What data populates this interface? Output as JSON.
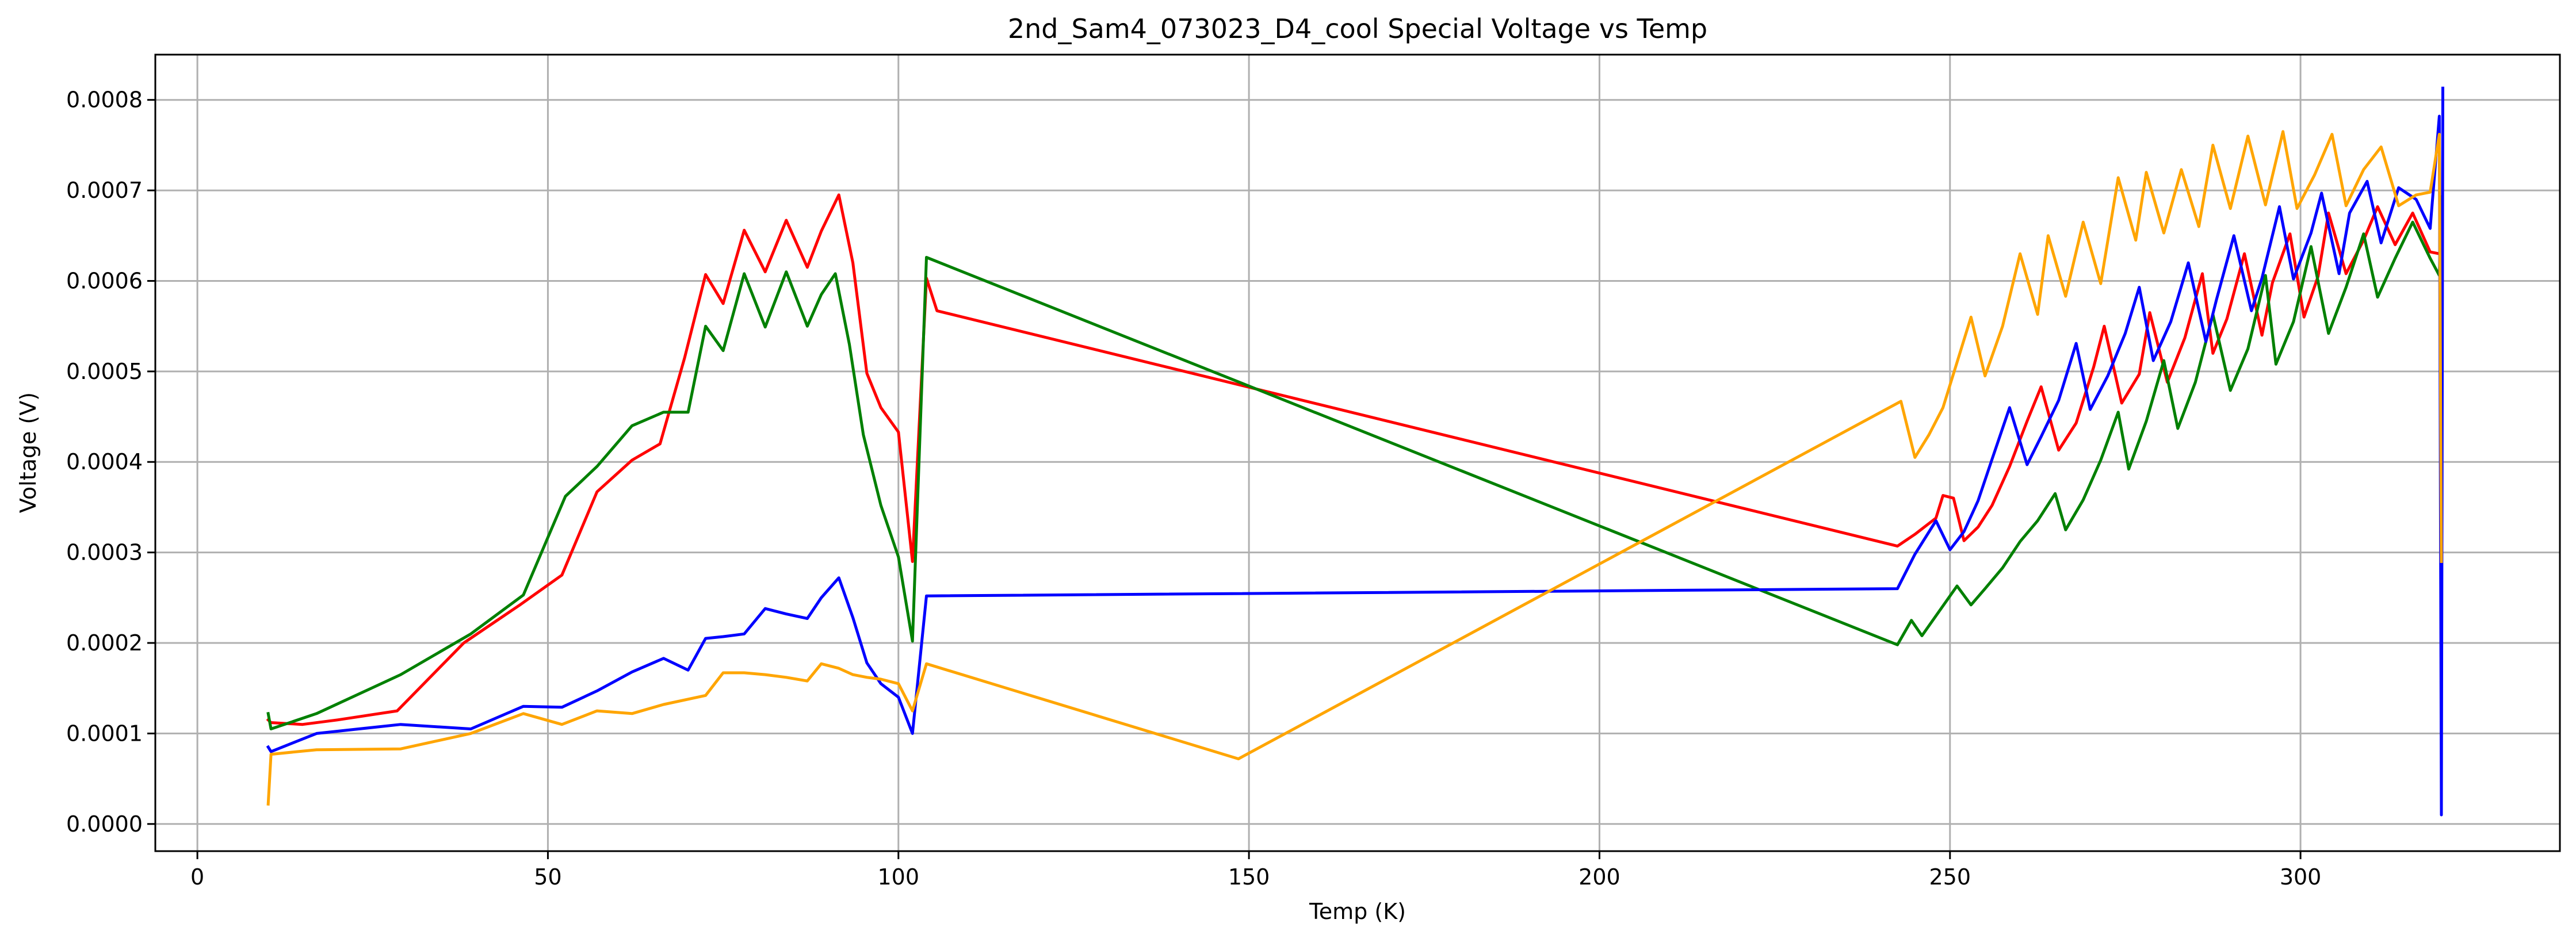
{
  "chart_data": {
    "type": "line",
    "title": "2nd_Sam4_073023_D4_cool Special Voltage vs Temp",
    "xlabel": "Temp (K)",
    "ylabel": "Voltage (V)",
    "xlim": [
      -6,
      337
    ],
    "ylim": [
      -3e-05,
      0.00085
    ],
    "xticks": [
      0,
      50,
      100,
      150,
      200,
      250,
      300
    ],
    "xtick_labels": [
      "0",
      "50",
      "100",
      "150",
      "200",
      "250",
      "300"
    ],
    "yticks": [
      0,
      0.0001,
      0.0002,
      0.0003,
      0.0004,
      0.0005,
      0.0006,
      0.0007,
      0.0008
    ],
    "ytick_labels": [
      "0.0000",
      "0.0001",
      "0.0002",
      "0.0003",
      "0.0004",
      "0.0005",
      "0.0006",
      "0.0007",
      "0.0008"
    ],
    "grid": true,
    "series": [
      {
        "color": "#ff0000",
        "x": [
          10.1,
          10.5,
          15,
          20,
          28.5,
          38,
          46,
          52,
          57,
          62,
          66,
          69.5,
          72.5,
          75,
          78,
          81,
          84,
          87,
          89,
          91.5,
          93.5,
          95.5,
          97.5,
          100,
          102,
          104,
          105.5,
          242.5,
          245,
          248,
          249,
          250.5,
          252,
          254,
          256,
          258.5,
          261,
          263,
          265.5,
          268,
          270.5,
          272,
          274.5,
          277,
          278.5,
          281,
          283.5,
          286,
          287.5,
          289.5,
          292,
          294.5,
          296,
          298.5,
          300.5,
          302.5,
          304,
          306.5,
          309,
          311,
          313.5,
          316,
          318.5,
          319.8
        ],
        "y": [
          0.000115,
          0.000112,
          0.00011,
          0.000115,
          0.000125,
          0.0002,
          0.000242,
          0.000275,
          0.000367,
          0.000402,
          0.00042,
          0.000515,
          0.000607,
          0.000575,
          0.000656,
          0.00061,
          0.000667,
          0.000615,
          0.000655,
          0.000695,
          0.00062,
          0.000498,
          0.00046,
          0.000433,
          0.00029,
          0.000603,
          0.000567,
          0.000307,
          0.00032,
          0.000338,
          0.000363,
          0.00036,
          0.000313,
          0.000328,
          0.000352,
          0.000395,
          0.000445,
          0.000483,
          0.000413,
          0.000443,
          0.000505,
          0.00055,
          0.000465,
          0.000497,
          0.000565,
          0.000488,
          0.000537,
          0.000608,
          0.00052,
          0.000558,
          0.00063,
          0.00054,
          0.000598,
          0.000652,
          0.00056,
          0.000605,
          0.000675,
          0.000608,
          0.000645,
          0.000682,
          0.00064,
          0.000675,
          0.000632,
          0.00063
        ]
      },
      {
        "color": "#008000",
        "x": [
          10.1,
          10.5,
          17,
          29,
          39,
          46.5,
          52.5,
          57,
          62,
          66.5,
          70,
          72.5,
          75,
          78,
          81,
          84,
          87,
          89,
          91,
          93,
          95,
          97.5,
          100,
          102,
          104,
          242.5,
          244.5,
          246,
          248,
          251,
          253,
          255,
          257.5,
          260,
          262.5,
          265,
          266.5,
          269,
          271.5,
          274,
          275.5,
          278,
          280.5,
          282.5,
          285,
          287.5,
          290,
          292.5,
          295,
          296.5,
          299,
          301.5,
          304,
          306.5,
          309,
          311,
          313.5,
          316,
          318.5,
          319.8,
          320.2
        ],
        "y": [
          0.000122,
          0.000105,
          0.000122,
          0.000165,
          0.00021,
          0.000253,
          0.000362,
          0.000395,
          0.00044,
          0.000455,
          0.000455,
          0.00055,
          0.000523,
          0.000608,
          0.000549,
          0.00061,
          0.00055,
          0.000585,
          0.000608,
          0.00053,
          0.00043,
          0.000352,
          0.000295,
          0.000202,
          0.000626,
          0.000198,
          0.000225,
          0.000208,
          0.00023,
          0.000263,
          0.000242,
          0.00026,
          0.000283,
          0.000312,
          0.000335,
          0.000365,
          0.000325,
          0.000358,
          0.000402,
          0.000455,
          0.000392,
          0.000445,
          0.000512,
          0.000437,
          0.000488,
          0.000563,
          0.000479,
          0.000525,
          0.000606,
          0.000508,
          0.000555,
          0.000638,
          0.000542,
          0.000593,
          0.000652,
          0.000582,
          0.000625,
          0.000665,
          0.000625,
          0.000606,
          0.000693
        ]
      },
      {
        "color": "#0000ff",
        "x": [
          10.1,
          10.5,
          17,
          29,
          39,
          46.5,
          52,
          57,
          62,
          66.5,
          70,
          72.5,
          75,
          78,
          81,
          84,
          87,
          89,
          91.5,
          93.5,
          95.5,
          97.5,
          100,
          102,
          104,
          242.5,
          245,
          248,
          250,
          252,
          254,
          256,
          258.5,
          261,
          263,
          265.5,
          268,
          270,
          272.5,
          275,
          277,
          279,
          281.5,
          284,
          286.5,
          288,
          290.5,
          293,
          294.5,
          297,
          299,
          301.5,
          303,
          305.5,
          307,
          309.5,
          311.5,
          314,
          316.5,
          318.5,
          319.8,
          320.1,
          320.3
        ],
        "y": [
          8.5e-05,
          8e-05,
          0.0001,
          0.00011,
          0.000105,
          0.00013,
          0.000129,
          0.000147,
          0.000168,
          0.000183,
          0.00017,
          0.000205,
          0.000207,
          0.00021,
          0.000238,
          0.000232,
          0.000227,
          0.00025,
          0.000272,
          0.000228,
          0.000178,
          0.000155,
          0.00014,
          0.0001,
          0.000252,
          0.00026,
          0.000298,
          0.000335,
          0.000303,
          0.000323,
          0.000357,
          0.000403,
          0.00046,
          0.000397,
          0.000428,
          0.000468,
          0.000531,
          0.000458,
          0.000495,
          0.000542,
          0.000593,
          0.000512,
          0.000555,
          0.00062,
          0.000533,
          0.000579,
          0.00065,
          0.000567,
          0.000603,
          0.000682,
          0.000602,
          0.000653,
          0.000697,
          0.000608,
          0.000675,
          0.00071,
          0.000642,
          0.000703,
          0.00069,
          0.000658,
          0.000782,
          1e-05,
          0.000813
        ]
      },
      {
        "color": "#ffa500",
        "x": [
          10.1,
          10.5,
          17,
          29,
          39,
          46.5,
          52,
          57,
          62,
          66.5,
          72.5,
          75,
          78,
          81,
          84,
          87,
          89,
          91.5,
          93.5,
          95.5,
          97.5,
          100,
          102,
          104,
          148.5,
          243,
          245,
          247,
          249,
          251,
          253,
          255,
          257.5,
          260,
          262.5,
          264,
          266.5,
          269,
          271.5,
          274,
          276.5,
          278,
          280.5,
          283,
          285.5,
          287.5,
          290,
          292.5,
          295,
          297.5,
          299.5,
          302,
          304.5,
          306.5,
          309,
          311.5,
          314,
          316.5,
          318.5,
          319.8,
          320.1
        ],
        "y": [
          2.2e-05,
          7.7e-05,
          8.2e-05,
          8.3e-05,
          0.0001,
          0.000122,
          0.00011,
          0.000125,
          0.000122,
          0.000132,
          0.000142,
          0.000167,
          0.000167,
          0.000165,
          0.000162,
          0.000158,
          0.000177,
          0.000172,
          0.000165,
          0.000162,
          0.00016,
          0.000155,
          0.000125,
          0.000177,
          7.2e-05,
          0.000467,
          0.000405,
          0.00043,
          0.00046,
          0.00051,
          0.00056,
          0.000495,
          0.00055,
          0.00063,
          0.000563,
          0.00065,
          0.000583,
          0.000665,
          0.000597,
          0.000714,
          0.000645,
          0.00072,
          0.000653,
          0.000723,
          0.00066,
          0.00075,
          0.00068,
          0.00076,
          0.000684,
          0.000765,
          0.00068,
          0.000717,
          0.000762,
          0.000683,
          0.000723,
          0.000748,
          0.000683,
          0.000695,
          0.000698,
          0.000762,
          0.00029
        ]
      }
    ]
  }
}
